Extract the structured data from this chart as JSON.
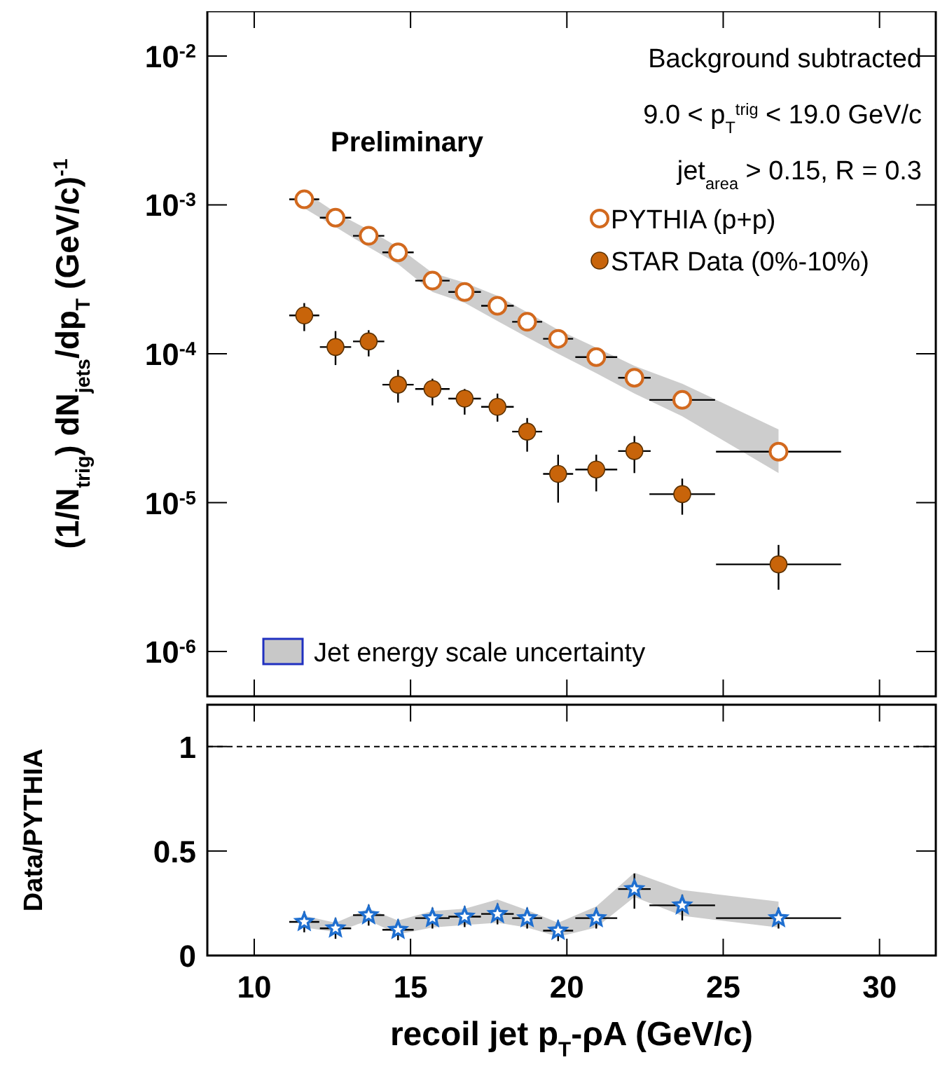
{
  "chart_data": [
    {
      "type": "scatter",
      "ylabel": "(1/N$_{trig}$) dN$_{jets}$/dp$_{T}$ (GeV/c)$^{-1}$",
      "xlim": [
        8.5,
        31.8
      ],
      "xticks": [
        10,
        15,
        20,
        25,
        30
      ],
      "ylim": [
        5e-07,
        0.02
      ],
      "yticks": [
        {
          "value": 0.01,
          "label": "10$^{-2}$"
        },
        {
          "value": 0.001,
          "label": "10$^{-3}$"
        },
        {
          "value": 0.0001,
          "label": "10$^{-4}$"
        },
        {
          "value": 1e-05,
          "label": "10$^{-5}$"
        },
        {
          "value": 1e-06,
          "label": "10$^{-6}$"
        }
      ],
      "log": "y",
      "tick_labels": "y",
      "legend": "top right",
      "marker": "circle",
      "annotations": [
        "Preliminary",
        "Background subtracted",
        "9.0 < p$_{T}$$^{trig}$ < 19.0 GeV/c",
        "jet$_{area}$ > 0.15, R = 0.3",
        "Jet energy scale uncertainty"
      ],
      "series": [
        {
          "name": "PYTHIA (p+p)",
          "color": "#d2691e",
          "x": [
            11.6,
            12.6,
            13.66,
            14.6,
            15.7,
            16.73,
            17.78,
            18.73,
            19.72,
            20.94,
            22.16,
            23.69,
            26.77
          ],
          "values": [
            0.00109,
            0.00082,
            0.00062,
            0.00048,
            0.00031,
            0.00026,
            0.00021,
            0.000164,
            0.000126,
            9.5e-05,
            6.9e-05,
            4.9e-05,
            2.2e-05
          ],
          "xerrors": [
            0.48,
            0.5,
            0.5,
            0.5,
            0.55,
            0.52,
            0.52,
            0.48,
            0.48,
            0.67,
            0.52,
            1.05,
            2.0
          ],
          "upper": [
            0.00123,
            0.00089,
            0.00068,
            0.00052,
            0.00035,
            0.0003,
            0.000245,
            0.00019,
            0.000145,
            0.00011,
            8.3e-05,
            6.3e-05,
            3.1e-05
          ],
          "lower": [
            0.00095,
            0.00071,
            0.00052,
            0.0004,
            0.00026,
            0.00022,
            0.000166,
            0.000129,
            0.0001,
            7.4e-05,
            5.4e-05,
            3.8e-05,
            1.58e-05
          ]
        },
        {
          "name": "STAR Data (0%-10%)",
          "color": "#c8640a",
          "x": [
            11.6,
            12.6,
            13.66,
            14.6,
            15.7,
            16.73,
            17.78,
            18.73,
            19.72,
            20.94,
            22.16,
            23.69,
            26.77
          ],
          "values": [
            0.000181,
            0.000111,
            0.000121,
            6.2e-05,
            5.8e-05,
            5e-05,
            4.4e-05,
            3e-05,
            1.56e-05,
            1.67e-05,
            2.22e-05,
            1.14e-05,
            3.85e-06
          ],
          "errors": [
            [
              0.000142,
              0.000219
            ],
            [
              8.4e-05,
              0.000142
            ],
            [
              9.6e-05,
              0.000144
            ],
            [
              4.7e-05,
              7.8e-05
            ],
            [
              4.5e-05,
              6.8e-05
            ],
            [
              3.9e-05,
              5.8e-05
            ],
            [
              3.5e-05,
              5.4e-05
            ],
            [
              2.2e-05,
              3.7e-05
            ],
            [
              1e-05,
              2.1e-05
            ],
            [
              1.19e-05,
              2.1e-05
            ],
            [
              1.58e-05,
              2.8e-05
            ],
            [
              8.3e-06,
              1.45e-05
            ],
            [
              2.6e-06,
              5.2e-06
            ]
          ],
          "xerrors": [
            0.48,
            0.5,
            0.5,
            0.5,
            0.55,
            0.52,
            0.52,
            0.48,
            0.48,
            0.67,
            0.52,
            1.05,
            2.0
          ]
        }
      ]
    },
    {
      "type": "scatter",
      "xlabel": "recoil jet p$_{T}$-ρA (GeV/c)",
      "ylabel": "Data/PYTHIA",
      "xlim": [
        8.5,
        31.8
      ],
      "xticks": [
        10,
        15,
        20,
        25,
        30
      ],
      "ylim": [
        0,
        1.2
      ],
      "yticks": [
        0,
        0.5,
        1
      ],
      "marker": "star",
      "ref_lines": [
        {
          "axis": "y",
          "value": 1,
          "line_style": "dashed",
          "color": "#000000"
        }
      ],
      "series": [
        {
          "color": "#1f6fd0",
          "x": [
            11.6,
            12.6,
            13.66,
            14.6,
            15.7,
            16.73,
            17.78,
            18.73,
            19.72,
            20.94,
            22.16,
            23.69,
            26.77
          ],
          "values": [
            0.161,
            0.13,
            0.193,
            0.123,
            0.179,
            0.186,
            0.199,
            0.179,
            0.119,
            0.179,
            0.318,
            0.24,
            0.179
          ],
          "errors": [
            0.05,
            0.05,
            0.05,
            0.05,
            0.05,
            0.05,
            0.05,
            0.05,
            0.05,
            0.05,
            [
              0.224,
              0.392
            ],
            [
              0.168,
              0.291
            ],
            0.05
          ],
          "xerrors": [
            0.48,
            0.5,
            0.5,
            0.5,
            0.55,
            0.52,
            0.52,
            0.48,
            0.48,
            0.67,
            0.52,
            1.05,
            2.0
          ],
          "upper": [
            0.19,
            0.157,
            0.224,
            0.168,
            0.213,
            0.224,
            0.268,
            0.217,
            0.157,
            0.235,
            0.396,
            0.313,
            0.258
          ],
          "lower": [
            0.134,
            0.112,
            0.168,
            0.101,
            0.134,
            0.146,
            0.157,
            0.134,
            0.09,
            0.134,
            0.28,
            0.19,
            0.134
          ]
        }
      ]
    }
  ]
}
